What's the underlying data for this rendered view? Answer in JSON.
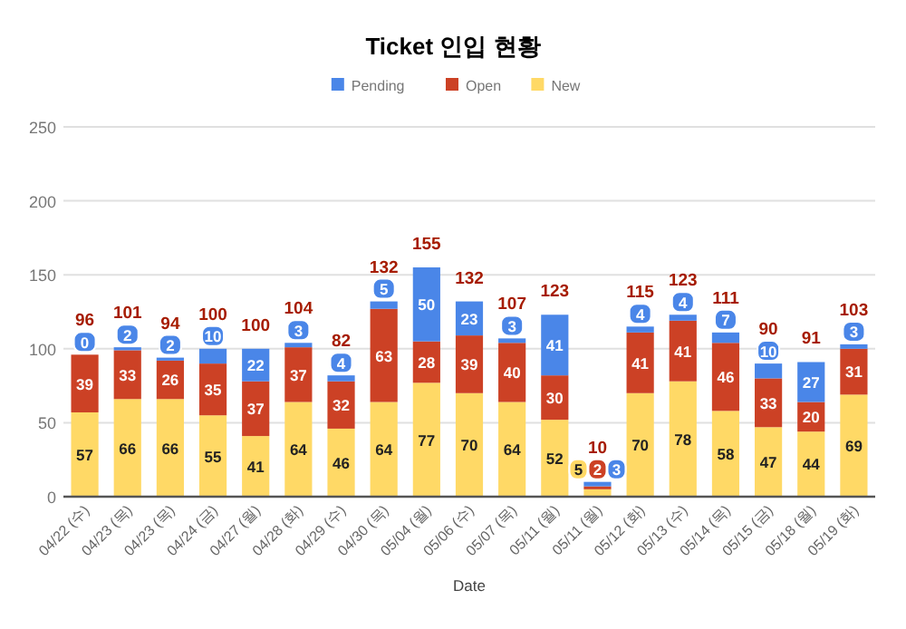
{
  "chart_data": {
    "type": "bar",
    "title": "Ticket 인입 현황",
    "xlabel": "Date",
    "categories": [
      "04/22 (수)",
      "04/23 (목)",
      "04/23 (목)",
      "04/24 (금)",
      "04/27 (월)",
      "04/28 (화)",
      "04/29 (수)",
      "04/30 (목)",
      "05/04 (월)",
      "05/06 (수)",
      "05/07 (목)",
      "05/11 (월)",
      "05/11 (월)",
      "05/12 (화)",
      "05/13 (수)",
      "05/14 (목)",
      "05/15 (금)",
      "05/18 (월)",
      "05/19 (화)"
    ],
    "stacked": true,
    "series": [
      {
        "name": "New",
        "color": "#ffd966",
        "values": [
          57,
          66,
          66,
          55,
          41,
          64,
          46,
          64,
          77,
          70,
          64,
          52,
          5,
          70,
          78,
          58,
          47,
          44,
          69
        ]
      },
      {
        "name": "Open",
        "color": "#cc4125",
        "values": [
          39,
          33,
          26,
          35,
          37,
          37,
          32,
          63,
          28,
          39,
          40,
          30,
          2,
          41,
          41,
          46,
          33,
          20,
          31
        ]
      },
      {
        "name": "Pending",
        "color": "#4a86e8",
        "values": [
          0,
          2,
          2,
          10,
          22,
          3,
          4,
          5,
          50,
          23,
          3,
          41,
          3,
          4,
          4,
          7,
          10,
          27,
          3
        ]
      }
    ],
    "totals": [
      "96",
      "101",
      "94",
      "100",
      "100",
      "104",
      "82",
      "132",
      "155",
      "132",
      "107",
      "123",
      "10",
      "115",
      "123",
      "111",
      "90",
      "91",
      "103"
    ],
    "data_labels": true,
    "ylim": [
      0,
      250
    ],
    "yticks": [
      0,
      50,
      100,
      150,
      200,
      250
    ],
    "grid": "y",
    "legend": "top"
  }
}
